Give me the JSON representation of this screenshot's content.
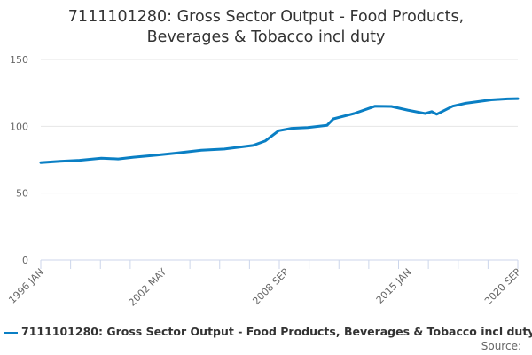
{
  "chart_data": {
    "type": "line",
    "title_line1": "7111101280: Gross Sector Output - Food Products,",
    "title_line2": "Beverages & Tobacco incl duty",
    "xlabel": "",
    "ylabel": "",
    "ylim": [
      0,
      150
    ],
    "yticks": [
      "0",
      "50",
      "100",
      "150"
    ],
    "ytick_values": [
      0,
      50,
      100,
      150
    ],
    "xlim": [
      1996.0,
      2020.667
    ],
    "xtick_labels": [
      "1996 JAN",
      "2002 MAY",
      "2008 SEP",
      "2015 JAN",
      "2020 SEP"
    ],
    "xtick_values": [
      1996.0,
      2002.333,
      2008.667,
      2015.0,
      2020.667
    ],
    "grid": true,
    "legend_position": "bottom",
    "series": [
      {
        "name": "7111101280: Gross Sector Output - Food Products, Beverages & Tobacco incl duty",
        "color": "#0a7fc4",
        "x": [
          1996.0,
          1997.0,
          1998.0,
          1999.13,
          2000.0,
          2000.8,
          2002.0,
          2003.0,
          2004.3,
          2005.5,
          2006.97,
          2007.6,
          2008.3,
          2008.97,
          2009.8,
          2010.8,
          2011.13,
          2012.2,
          2013.29,
          2014.13,
          2014.97,
          2015.88,
          2016.22,
          2016.47,
          2017.3,
          2017.97,
          2019.29,
          2020.13,
          2020.667
        ],
        "y": [
          72.9,
          73.8,
          74.6,
          76.2,
          75.6,
          76.9,
          78.5,
          80.0,
          82.2,
          83.0,
          85.7,
          89.0,
          96.7,
          98.5,
          99.0,
          100.7,
          105.5,
          109.5,
          115.0,
          114.8,
          112.1,
          109.5,
          111.0,
          109.0,
          115.0,
          117.2,
          119.8,
          120.5,
          120.7
        ]
      }
    ]
  },
  "source_label": "Source:"
}
